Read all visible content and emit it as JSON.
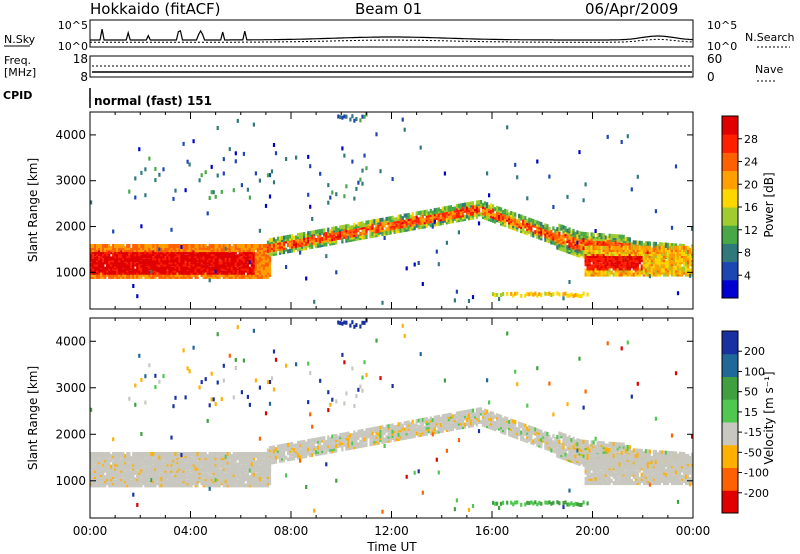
{
  "header": {
    "title": "Hokkaido (fitACF)",
    "beam": "Beam 01",
    "date": "06/Apr/2009"
  },
  "noise_panel": {
    "left_label": "N.Sky",
    "right_label": "N.Search",
    "left_ticks": [
      "10^5",
      "10^0"
    ],
    "right_ticks": [
      "10^5",
      "10^0"
    ]
  },
  "freq_panel": {
    "left_label_line1": "Freq.",
    "left_label_line2": "[MHz]",
    "left_ticks": [
      "18",
      "8"
    ],
    "right_label": "Nave",
    "right_ticks": [
      "60",
      "0"
    ]
  },
  "cpid": {
    "label": "CPID",
    "value": "normal (fast) 151"
  },
  "chart_data": [
    {
      "type": "heatmap",
      "name": "power",
      "ylabel": "Slant Range [km]",
      "ylim": [
        200,
        4500
      ],
      "yticks": [
        "4000",
        "3000",
        "2000",
        "1000"
      ],
      "ytick_values": [
        4000,
        3000,
        2000,
        1000
      ],
      "x_tick_labels": [
        "00:00",
        "04:00",
        "08:00",
        "12:00",
        "16:00",
        "20:00",
        "00:00"
      ],
      "x_tick_hours": [
        0,
        4,
        8,
        12,
        16,
        20,
        24
      ],
      "colorbar": {
        "label": "Power [dB]",
        "ticks": [
          "28",
          "24",
          "20",
          "16",
          "12",
          "8",
          "4"
        ],
        "tick_values": [
          28,
          24,
          20,
          16,
          12,
          8,
          4
        ],
        "range": [
          0,
          30
        ],
        "colors": [
          "#0000d0",
          "#1c46b4",
          "#30787a",
          "#48a848",
          "#a0cc30",
          "#ffd700",
          "#ffa000",
          "#ff6000",
          "#ff2000",
          "#e00000"
        ]
      }
    },
    {
      "type": "heatmap",
      "name": "velocity",
      "ylabel": "Slant Range [km]",
      "ylim": [
        200,
        4500
      ],
      "yticks": [
        "4000",
        "3000",
        "2000",
        "1000"
      ],
      "ytick_values": [
        4000,
        3000,
        2000,
        1000
      ],
      "x_tick_labels": [
        "00:00",
        "04:00",
        "08:00",
        "12:00",
        "16:00",
        "20:00",
        "00:00"
      ],
      "x_tick_hours": [
        0,
        4,
        8,
        12,
        16,
        20,
        24
      ],
      "xlabel": "Time UT",
      "colorbar": {
        "label": "Velocity [m s⁻¹]",
        "ticks": [
          "200",
          "100",
          "50",
          "15",
          "-15",
          "-50",
          "-100",
          "-200"
        ],
        "colors": [
          "#e00000",
          "#ff6000",
          "#ffb000",
          "#c8c8c0",
          "#50c850",
          "#40a040",
          "#206898",
          "#1830a0"
        ]
      }
    }
  ]
}
